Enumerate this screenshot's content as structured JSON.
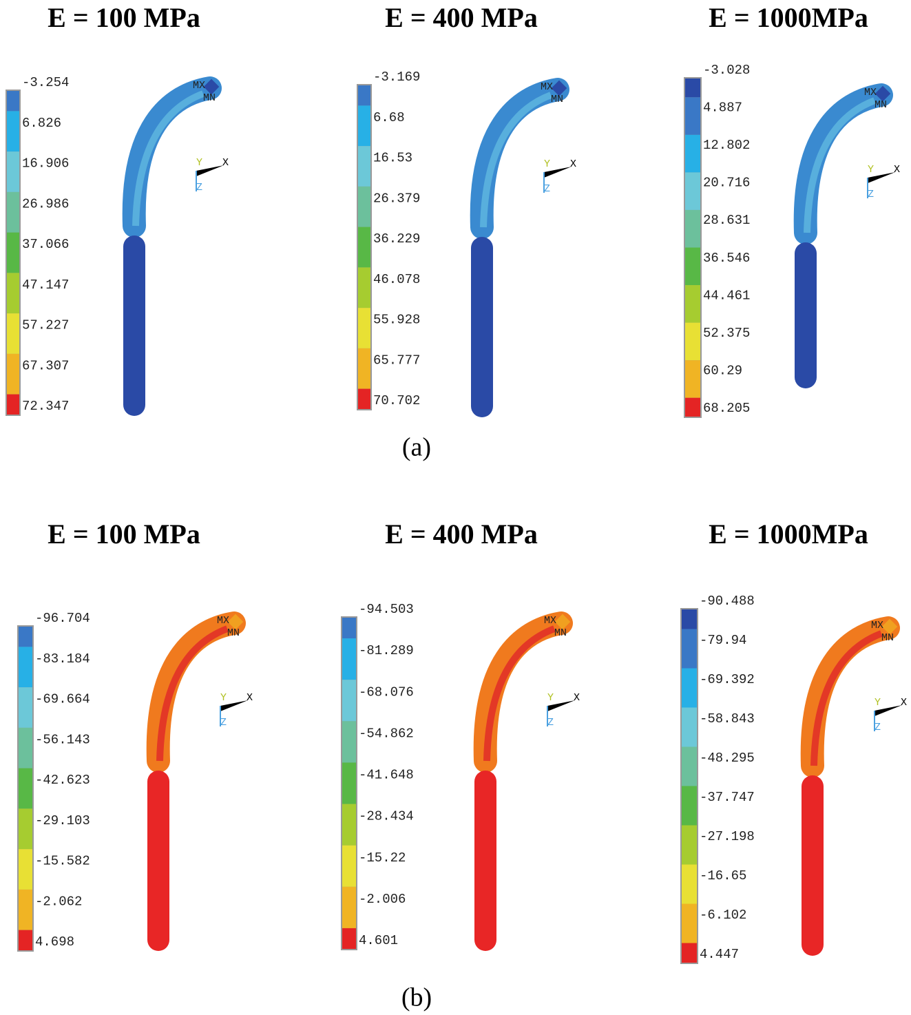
{
  "figure": {
    "rows": [
      {
        "caption": "(a)",
        "panels": [
          {
            "title": "E = 100 MPa",
            "legend": [
              "-3.254",
              "6.826",
              "16.906",
              "26.986",
              "37.066",
              "47.147",
              "57.227",
              "67.307",
              "72.347"
            ],
            "max": "MX",
            "min": "MN",
            "triad": {
              "y": "Y",
              "x": "X",
              "z": "Z"
            }
          },
          {
            "title": "E = 400 MPa",
            "legend": [
              "-3.169",
              "6.68",
              "16.53",
              "26.379",
              "36.229",
              "46.078",
              "55.928",
              "65.777",
              "70.702"
            ],
            "max": "MX",
            "min": "MN",
            "triad": {
              "y": "Y",
              "x": "X",
              "z": "Z"
            }
          },
          {
            "title": "E = 1000MPa",
            "legend": [
              "-3.028",
              "4.887",
              "12.802",
              "20.716",
              "28.631",
              "36.546",
              "44.461",
              "52.375",
              "60.29",
              "68.205"
            ],
            "max": "MX",
            "min": "MN",
            "triad": {
              "y": "Y",
              "x": "X",
              "z": "Z"
            }
          }
        ]
      },
      {
        "caption": "(b)",
        "panels": [
          {
            "title": "E = 100 MPa",
            "legend": [
              "-96.704",
              "-83.184",
              "-69.664",
              "-56.143",
              "-42.623",
              "-29.103",
              "-15.582",
              "-2.062",
              "4.698"
            ],
            "max": "MX",
            "min": "MN",
            "triad": {
              "y": "Y",
              "x": "X",
              "z": "Z"
            }
          },
          {
            "title": "E = 400 MPa",
            "legend": [
              "-94.503",
              "-81.289",
              "-68.076",
              "-54.862",
              "-41.648",
              "-28.434",
              "-15.22",
              "-2.006",
              "4.601"
            ],
            "max": "MX",
            "min": "MN",
            "triad": {
              "y": "Y",
              "x": "X",
              "z": "Z"
            }
          },
          {
            "title": "E = 1000MPa",
            "legend": [
              "-90.488",
              "-79.94",
              "-69.392",
              "-58.843",
              "-48.295",
              "-37.747",
              "-27.198",
              "-16.65",
              "-6.102",
              "4.447"
            ],
            "max": "MX",
            "min": "MN",
            "triad": {
              "y": "Y",
              "x": "X",
              "z": "Z"
            }
          }
        ]
      }
    ]
  }
}
